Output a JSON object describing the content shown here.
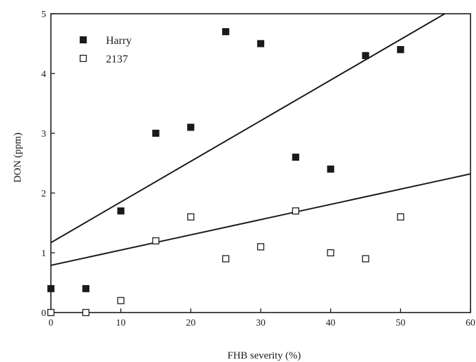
{
  "chart_data": {
    "type": "scatter",
    "title": "",
    "xlabel": "FHB severity (%)",
    "ylabel": "DON (ppm)",
    "xlim": [
      0,
      60
    ],
    "ylim": [
      0,
      5
    ],
    "xticks": [
      0,
      10,
      20,
      30,
      40,
      50,
      60
    ],
    "yticks": [
      0,
      1,
      2,
      3,
      4,
      5
    ],
    "grid": false,
    "legend_position": "top-left",
    "series": [
      {
        "name": "Harry",
        "marker": "filled-square",
        "color": "#1a1a1a",
        "x": [
          0,
          5,
          10,
          15,
          20,
          25,
          30,
          35,
          40,
          45,
          50
        ],
        "y": [
          0.4,
          0.4,
          1.7,
          3.0,
          3.1,
          4.7,
          4.5,
          2.6,
          2.4,
          4.3,
          4.4
        ],
        "trendline": {
          "intercept": 1.17,
          "slope": 0.068
        }
      },
      {
        "name": "2137",
        "marker": "open-square",
        "color": "#1a1a1a",
        "x": [
          0,
          5,
          10,
          15,
          20,
          25,
          30,
          35,
          40,
          45,
          50
        ],
        "y": [
          0.0,
          0.0,
          0.2,
          1.2,
          1.6,
          0.9,
          1.1,
          1.7,
          1.0,
          0.9,
          1.6
        ],
        "trendline": {
          "intercept": 0.79,
          "slope": 0.0255
        }
      }
    ]
  }
}
